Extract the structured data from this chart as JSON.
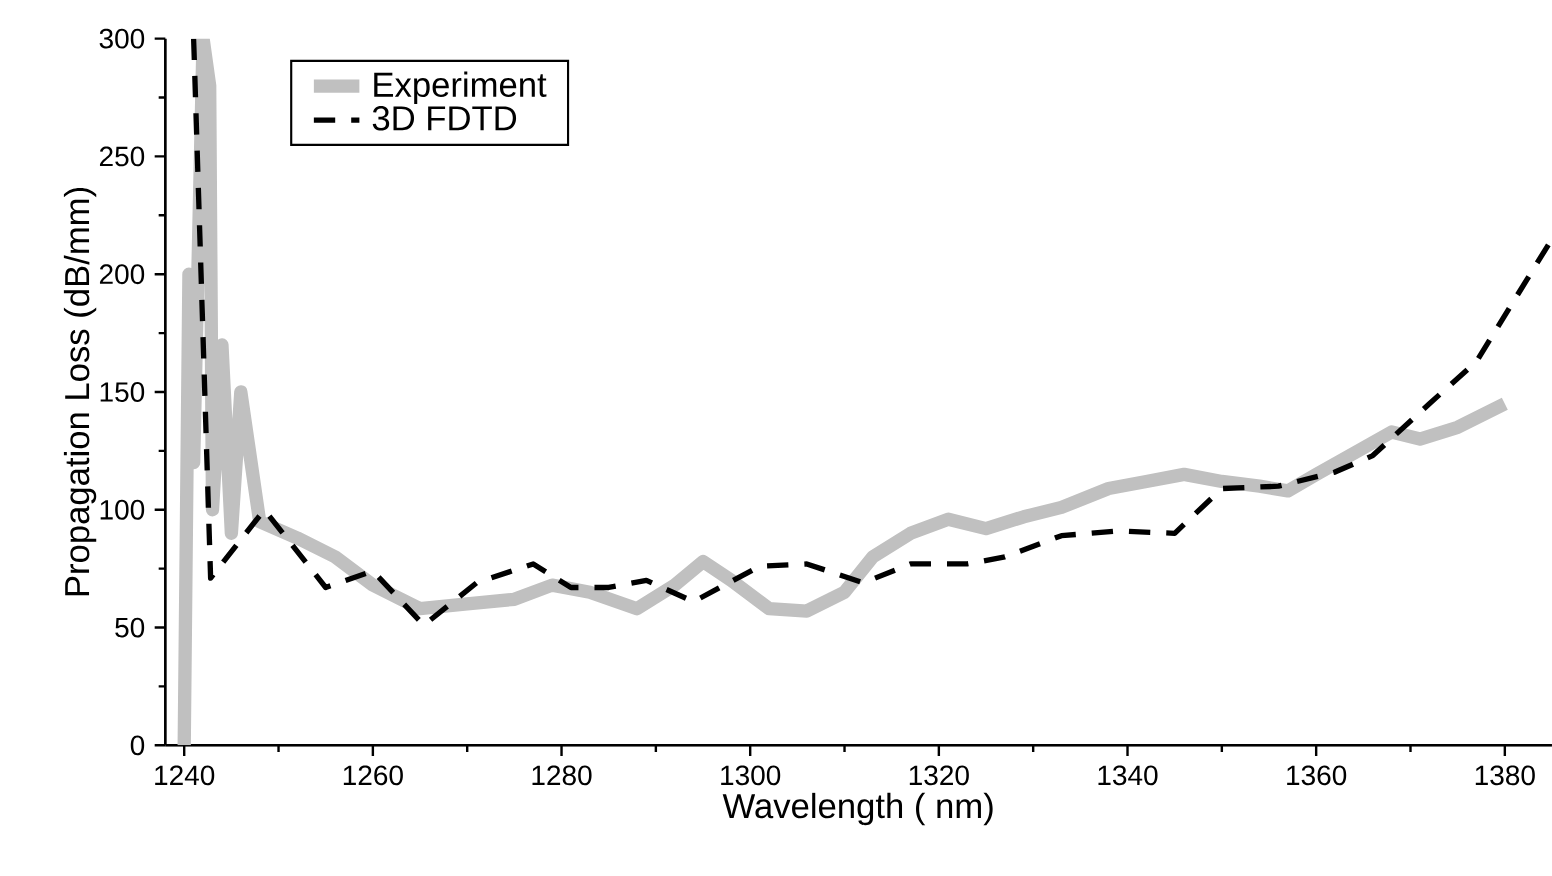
{
  "chart_data": {
    "type": "line",
    "xlabel": "Wavelength ( nm)",
    "ylabel": "Propagation Loss (dB/mm)",
    "xlim": [
      1238,
      1385
    ],
    "ylim": [
      0,
      300
    ],
    "xticks": [
      1240,
      1260,
      1280,
      1300,
      1320,
      1340,
      1360,
      1380
    ],
    "yticks": [
      0,
      50,
      100,
      150,
      200,
      250,
      300
    ],
    "legend": "top left",
    "grid": false,
    "series": [
      {
        "name": "Experiment",
        "color": "#c0c0c0",
        "line_style": "solid",
        "x": [
          1240,
          1240.5,
          1241,
          1242,
          1242.7,
          1243,
          1244,
          1245,
          1246,
          1248,
          1252,
          1256,
          1260,
          1265,
          1270,
          1275,
          1279,
          1283,
          1288,
          1292,
          1295,
          1298,
          1302,
          1306,
          1310,
          1313,
          1317,
          1321,
          1325,
          1329,
          1333,
          1338,
          1342,
          1346,
          1350,
          1354,
          1357,
          1360,
          1364,
          1368,
          1371,
          1375,
          1380
        ],
        "values": [
          0,
          200,
          120,
          300,
          280,
          100,
          170,
          90,
          150,
          95,
          88,
          80,
          68,
          58,
          60,
          62,
          68,
          65,
          58,
          68,
          78,
          70,
          58,
          57,
          65,
          80,
          90,
          96,
          92,
          97,
          101,
          109,
          112,
          115,
          112,
          110,
          108,
          115,
          124,
          133,
          130,
          135,
          145
        ]
      },
      {
        "name": "3D FDTD",
        "color": "#000000",
        "line_style": "dashed",
        "x": [
          1241,
          1242.8,
          1248.5,
          1255,
          1260,
          1265.4,
          1271,
          1277,
          1281,
          1285,
          1289,
          1294,
          1301,
          1306,
          1312,
          1317,
          1323,
          1327,
          1333,
          1339,
          1345,
          1350,
          1356,
          1362,
          1366,
          1372,
          1377,
          1385
        ],
        "values": [
          300,
          71,
          100,
          67,
          74,
          51,
          69,
          77,
          67,
          67,
          70,
          61,
          76,
          77,
          69,
          77,
          77,
          80,
          89,
          91,
          90,
          109,
          110,
          116,
          123,
          145,
          163,
          215
        ]
      }
    ]
  }
}
